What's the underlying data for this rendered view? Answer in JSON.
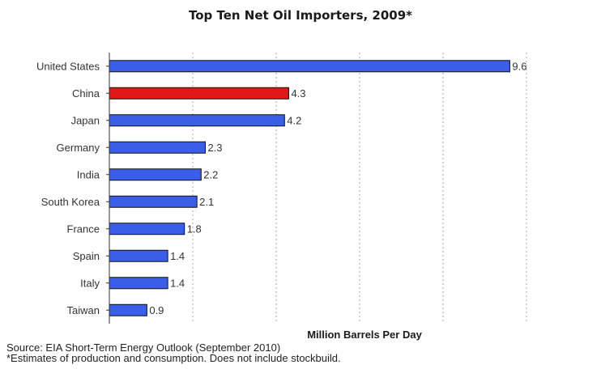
{
  "chart_data": {
    "type": "bar",
    "orientation": "horizontal",
    "title": "Top Ten Net Oil Importers, 2009*",
    "xlabel": "Million Barrels Per Day",
    "ylabel": "",
    "categories": [
      "United States",
      "China",
      "Japan",
      "Germany",
      "India",
      "South Korea",
      "France",
      "Spain",
      "Italy",
      "Taiwan"
    ],
    "values": [
      9.6,
      4.3,
      4.2,
      2.3,
      2.2,
      2.1,
      1.8,
      1.4,
      1.4,
      0.9
    ],
    "value_labels": [
      "9.6",
      "4.3",
      "4.2",
      "2.3",
      "2.2",
      "2.1",
      "1.8",
      "1.4",
      "1.4",
      "0.9"
    ],
    "highlight_category": "China",
    "xlim": [
      0,
      10
    ],
    "grid": true,
    "colors": {
      "default": "#3a5ee8",
      "highlight": "#e01818",
      "outline": "#111111",
      "grid": "#b8b8b8",
      "axis": "#333333"
    }
  },
  "source": "Source: EIA Short-Term Energy Outlook (September 2010)",
  "footnote": "*Estimates of production and consumption. Does not include stockbuild."
}
